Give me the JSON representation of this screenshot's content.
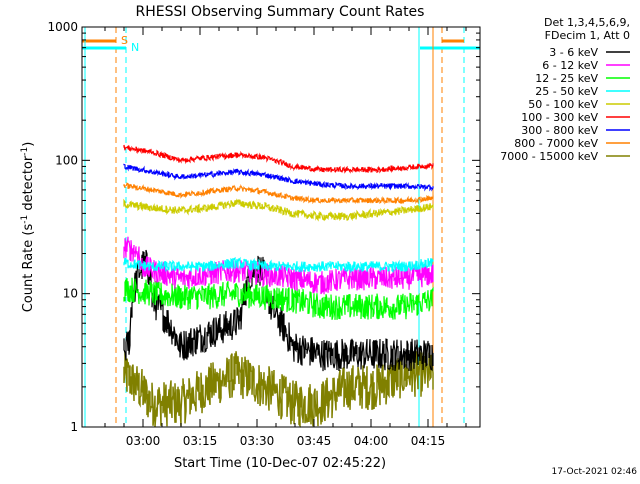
{
  "chart_data": {
    "type": "line",
    "title": "RHESSI Observing Summary Count Rates",
    "xlabel": "Start Time (10-Dec-07 02:45:22)",
    "ylabel_main": "Count Rate (s",
    "ylabel_sup1": "-1",
    "ylabel_mid": " detector",
    "ylabel_sup2": "-1",
    "ylabel_end": ")",
    "y_scale": "log",
    "ylim": [
      1,
      1000
    ],
    "x_ticks": [
      "03:00",
      "03:15",
      "03:30",
      "03:45",
      "04:00",
      "04:15"
    ],
    "y_ticks": [
      "1",
      "10",
      "100",
      "1000"
    ],
    "timestamp": "17-Oct-2021 02:46",
    "legend_header": [
      "Det 1,3,4,5,6,9,",
      "FDecim 1, Att 0"
    ],
    "series": [
      {
        "name": "3 - 6 keV",
        "color": "#000000",
        "values": [
          3.5,
          9,
          4,
          5,
          6,
          9,
          4,
          3.5,
          3.5,
          3.5,
          3.5,
          3.5
        ]
      },
      {
        "name": "6 - 12 keV",
        "color": "#ff00ff",
        "values": [
          18,
          15,
          13,
          14,
          15,
          14,
          13,
          12,
          13,
          13,
          13,
          14
        ]
      },
      {
        "name": "12 - 25 keV",
        "color": "#00ff00",
        "values": [
          11,
          10,
          9.5,
          9.5,
          10,
          9.5,
          9,
          8,
          8,
          8,
          8,
          9
        ]
      },
      {
        "name": "25 - 50 keV",
        "color": "#00ffff",
        "values": [
          17,
          16,
          16,
          16,
          17,
          16,
          16,
          16,
          16,
          16,
          16,
          17
        ]
      },
      {
        "name": "50 - 100 keV",
        "color": "#cccc00",
        "values": [
          47,
          44,
          42,
          44,
          48,
          45,
          40,
          38,
          38,
          40,
          42,
          45
        ]
      },
      {
        "name": "100 - 300 keV",
        "color": "#ff0000",
        "values": [
          125,
          115,
          100,
          105,
          110,
          105,
          90,
          85,
          85,
          85,
          88,
          92
        ]
      },
      {
        "name": "300 - 800 keV",
        "color": "#0000ff",
        "values": [
          90,
          82,
          75,
          78,
          82,
          78,
          70,
          66,
          64,
          64,
          64,
          63
        ]
      },
      {
        "name": "800 - 7000 keV",
        "color": "#ff8000",
        "values": [
          65,
          60,
          55,
          58,
          62,
          58,
          52,
          50,
          50,
          50,
          50,
          52
        ]
      },
      {
        "name": "7000 - 15000 keV",
        "color": "#808000",
        "values": [
          2.5,
          1.5,
          1.5,
          2,
          2.5,
          2,
          1.5,
          1.5,
          2,
          2,
          2.5,
          2.5
        ]
      }
    ],
    "markers": [
      {
        "label": "S",
        "color": "#ff8000"
      },
      {
        "label": "N",
        "color": "#00ffff"
      }
    ],
    "grid": false
  }
}
